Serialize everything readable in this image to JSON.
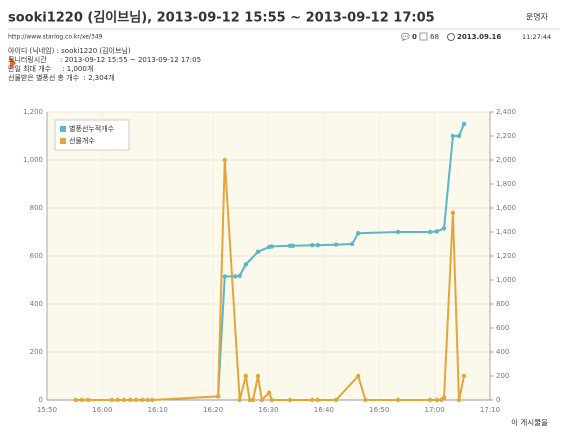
{
  "header": {
    "title": "sooki1220 (김이브님), 2013-09-12 15:55 ~ 2013-09-12 17:05",
    "author": "운영자",
    "url": "http://www.starlog.co.kr/xe/349",
    "comments": "0",
    "views": "68",
    "date": "2013.09.16",
    "time": "11:27:44"
  },
  "info": [
    "아이디 (닉네임) : sooki1220 (김이브님)",
    "모니터링시간      : 2013-09-12 15:55 ~ 2013-09-12 17:05",
    "단일 최대 개수     : 1,000개",
    "선물받은 별풍선 총 개수  : 2,304개"
  ],
  "footer": "이 게시물을",
  "chart_data": {
    "type": "line",
    "grid": true,
    "legend": "top-left",
    "xlim": [
      950,
      1030
    ],
    "xticks": [
      {
        "value": 950,
        "label": "15:50"
      },
      {
        "value": 960,
        "label": "16:00"
      },
      {
        "value": 970,
        "label": "16:10"
      },
      {
        "value": 980,
        "label": "16:20"
      },
      {
        "value": 990,
        "label": "16:30"
      },
      {
        "value": 1000,
        "label": "16:40"
      },
      {
        "value": 1010,
        "label": "16:50"
      },
      {
        "value": 1020,
        "label": "17:00"
      },
      {
        "value": 1030,
        "label": "17:10"
      }
    ],
    "ylim": [
      0,
      1200
    ],
    "yticks": [
      0,
      200,
      400,
      600,
      800,
      {
        "value": 1000,
        "label": "1,000"
      },
      {
        "value": 1200,
        "label": "1,200"
      }
    ],
    "y2lim": [
      0,
      2400
    ],
    "y2ticks": [
      0,
      200,
      400,
      600,
      800,
      {
        "value": 1000,
        "label": "1,000"
      },
      {
        "value": 1200,
        "label": "1,200"
      },
      {
        "value": 1400,
        "label": "1,400"
      },
      {
        "value": 1600,
        "label": "1,600"
      },
      {
        "value": 1800,
        "label": "1,800"
      },
      {
        "value": 2000,
        "label": "2,000"
      },
      {
        "value": 2200,
        "label": "2,200"
      },
      {
        "value": 2400,
        "label": "2,400"
      }
    ],
    "series": [
      {
        "name": "별풍선누적개수",
        "color": "#5ab6c8",
        "axis": "y2",
        "x": [
          980.9,
          982.1,
          984.0,
          984.8,
          985.9,
          988.1,
          990.1,
          990.6,
          993.9,
          994.4,
          997.9,
          998.9,
          1002.2,
          1005.1,
          1006.2,
          1013.4,
          1019.2,
          1020.4,
          1021.7,
          1023.3,
          1024.4,
          1025.3
        ],
        "values": [
          30,
          1030,
          1030,
          1035,
          1130,
          1235,
          1275,
          1280,
          1285,
          1285,
          1290,
          1290,
          1295,
          1300,
          1390,
          1400,
          1400,
          1405,
          1430,
          2200,
          2200,
          2300
        ]
      },
      {
        "name": "선물개수",
        "color": "#e5a53a",
        "axis": "y",
        "x": [
          955.2,
          956.3,
          957.4,
          961.7,
          962.8,
          963.9,
          965.0,
          966.1,
          967.2,
          968.2,
          969.0,
          980.9,
          982.1,
          984.8,
          985.9,
          986.6,
          987.2,
          988.1,
          988.8,
          990.1,
          990.6,
          993.9,
          997.9,
          998.9,
          1002.2,
          1006.2,
          1007.5,
          1013.4,
          1019.2,
          1020.4,
          1021.2,
          1021.7,
          1023.3,
          1024.4,
          1025.3
        ],
        "values": [
          0,
          0,
          0,
          0,
          0,
          0,
          0,
          0,
          0,
          0,
          0,
          15,
          1000,
          0,
          100,
          0,
          0,
          100,
          0,
          30,
          0,
          0,
          0,
          0,
          0,
          100,
          0,
          0,
          0,
          0,
          0,
          10,
          780,
          0,
          100
        ]
      }
    ]
  }
}
